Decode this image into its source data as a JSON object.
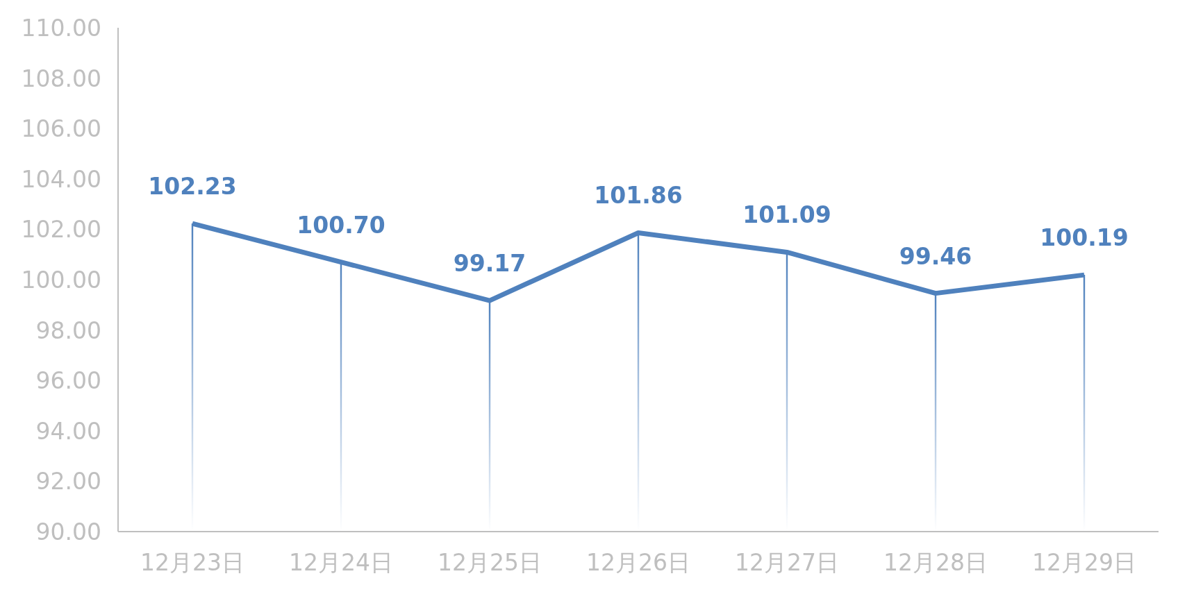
{
  "chart_data": {
    "type": "line",
    "categories": [
      "12月23日",
      "12月24日",
      "12月25日",
      "12月26日",
      "12月27日",
      "12月28日",
      "12月29日"
    ],
    "series": [
      {
        "color": "#4f81bd",
        "values": [
          102.23,
          100.7,
          99.17,
          101.86,
          101.09,
          99.46,
          100.19
        ],
        "value_labels": [
          "102.23",
          "100.70",
          "99.17",
          "101.86",
          "101.09",
          "99.46",
          "100.19"
        ]
      }
    ],
    "ylim": [
      90,
      110
    ],
    "yticks": [
      {
        "value": 90,
        "label": "90.00"
      },
      {
        "value": 92,
        "label": "92.00"
      },
      {
        "value": 94,
        "label": "94.00"
      },
      {
        "value": 96,
        "label": "96.00"
      },
      {
        "value": 98,
        "label": "98.00"
      },
      {
        "value": 100,
        "label": "100.00"
      },
      {
        "value": 102,
        "label": "102.00"
      },
      {
        "value": 104,
        "label": "104.00"
      },
      {
        "value": 106,
        "label": "106.00"
      },
      {
        "value": 108,
        "label": "108.00"
      },
      {
        "value": 110,
        "label": "110.00"
      }
    ],
    "grid": false,
    "marker": "none",
    "line_style": "solid"
  }
}
